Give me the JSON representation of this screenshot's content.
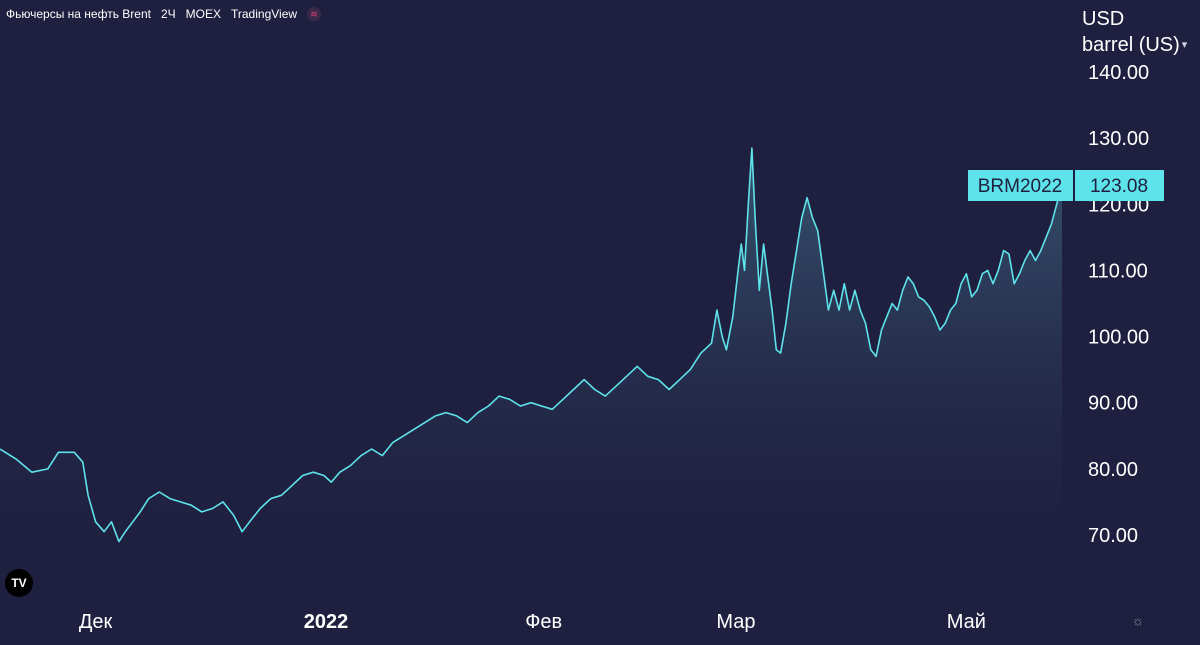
{
  "header": {
    "title": "Фьючерсы на нефть Brent",
    "interval": "2Ч",
    "exchange": "MOEX",
    "source": "TradingView"
  },
  "axis_unit": {
    "currency": "USD",
    "unit": "barrel (US)"
  },
  "colors": {
    "background": "#1f1f3f",
    "line": "#5ee3ea",
    "badge": "#5ee3ea",
    "text": "#ffffff"
  },
  "icons": {
    "tv_logo": "tradingview-logo-icon",
    "settings": "gear-icon",
    "unit_dropdown": "chevron-down-icon",
    "pulse": "pulse-icon"
  },
  "chart_data": {
    "type": "area",
    "symbol": "BRM2022",
    "last_value": "123.08",
    "y_ticks": [
      "70.00",
      "80.00",
      "90.00",
      "100.00",
      "110.00",
      "120.00",
      "130.00",
      "140.00"
    ],
    "ylim": [
      65,
      145
    ],
    "x_ticks": [
      {
        "label": "Дек",
        "t": 0.09,
        "bold": false
      },
      {
        "label": "2022",
        "t": 0.307,
        "bold": true
      },
      {
        "label": "Фев",
        "t": 0.512,
        "bold": false
      },
      {
        "label": "Мар",
        "t": 0.693,
        "bold": false
      },
      {
        "label": "Май",
        "t": 0.91,
        "bold": false
      }
    ],
    "grid": false,
    "series": [
      {
        "points": [
          [
            0.0,
            83.0
          ],
          [
            0.015,
            81.5
          ],
          [
            0.03,
            79.5
          ],
          [
            0.045,
            80.0
          ],
          [
            0.055,
            82.5
          ],
          [
            0.07,
            82.5
          ],
          [
            0.078,
            81.0
          ],
          [
            0.083,
            76.0
          ],
          [
            0.09,
            72.0
          ],
          [
            0.098,
            70.5
          ],
          [
            0.105,
            72.0
          ],
          [
            0.112,
            69.0
          ],
          [
            0.118,
            70.5
          ],
          [
            0.125,
            72.0
          ],
          [
            0.132,
            73.5
          ],
          [
            0.14,
            75.5
          ],
          [
            0.15,
            76.5
          ],
          [
            0.16,
            75.5
          ],
          [
            0.17,
            75.0
          ],
          [
            0.18,
            74.5
          ],
          [
            0.19,
            73.5
          ],
          [
            0.2,
            74.0
          ],
          [
            0.21,
            75.0
          ],
          [
            0.22,
            73.0
          ],
          [
            0.228,
            70.5
          ],
          [
            0.235,
            72.0
          ],
          [
            0.245,
            74.0
          ],
          [
            0.255,
            75.5
          ],
          [
            0.265,
            76.0
          ],
          [
            0.275,
            77.5
          ],
          [
            0.285,
            79.0
          ],
          [
            0.295,
            79.5
          ],
          [
            0.305,
            79.0
          ],
          [
            0.312,
            78.0
          ],
          [
            0.32,
            79.5
          ],
          [
            0.33,
            80.5
          ],
          [
            0.34,
            82.0
          ],
          [
            0.35,
            83.0
          ],
          [
            0.36,
            82.0
          ],
          [
            0.37,
            84.0
          ],
          [
            0.38,
            85.0
          ],
          [
            0.39,
            86.0
          ],
          [
            0.4,
            87.0
          ],
          [
            0.41,
            88.0
          ],
          [
            0.42,
            88.5
          ],
          [
            0.43,
            88.0
          ],
          [
            0.44,
            87.0
          ],
          [
            0.45,
            88.5
          ],
          [
            0.46,
            89.5
          ],
          [
            0.47,
            91.0
          ],
          [
            0.48,
            90.5
          ],
          [
            0.49,
            89.5
          ],
          [
            0.5,
            90.0
          ],
          [
            0.51,
            89.5
          ],
          [
            0.52,
            89.0
          ],
          [
            0.53,
            90.5
          ],
          [
            0.54,
            92.0
          ],
          [
            0.55,
            93.5
          ],
          [
            0.56,
            92.0
          ],
          [
            0.57,
            91.0
          ],
          [
            0.58,
            92.5
          ],
          [
            0.59,
            94.0
          ],
          [
            0.6,
            95.5
          ],
          [
            0.61,
            94.0
          ],
          [
            0.62,
            93.5
          ],
          [
            0.63,
            92.0
          ],
          [
            0.64,
            93.5
          ],
          [
            0.65,
            95.0
          ],
          [
            0.66,
            97.5
          ],
          [
            0.67,
            99.0
          ],
          [
            0.675,
            104.0
          ],
          [
            0.68,
            100.0
          ],
          [
            0.684,
            98.0
          ],
          [
            0.69,
            103.0
          ],
          [
            0.695,
            110.0
          ],
          [
            0.698,
            114.0
          ],
          [
            0.701,
            110.0
          ],
          [
            0.705,
            121.0
          ],
          [
            0.708,
            128.5
          ],
          [
            0.711,
            118.0
          ],
          [
            0.715,
            107.0
          ],
          [
            0.719,
            114.0
          ],
          [
            0.723,
            109.0
          ],
          [
            0.727,
            104.0
          ],
          [
            0.731,
            98.0
          ],
          [
            0.735,
            97.5
          ],
          [
            0.74,
            102.0
          ],
          [
            0.745,
            108.0
          ],
          [
            0.75,
            113.0
          ],
          [
            0.755,
            118.0
          ],
          [
            0.76,
            121.0
          ],
          [
            0.765,
            118.0
          ],
          [
            0.77,
            116.0
          ],
          [
            0.775,
            110.0
          ],
          [
            0.78,
            104.0
          ],
          [
            0.785,
            107.0
          ],
          [
            0.79,
            104.0
          ],
          [
            0.795,
            108.0
          ],
          [
            0.8,
            104.0
          ],
          [
            0.805,
            107.0
          ],
          [
            0.81,
            104.0
          ],
          [
            0.815,
            102.0
          ],
          [
            0.82,
            98.0
          ],
          [
            0.825,
            97.0
          ],
          [
            0.83,
            101.0
          ],
          [
            0.835,
            103.0
          ],
          [
            0.84,
            105.0
          ],
          [
            0.845,
            104.0
          ],
          [
            0.85,
            107.0
          ],
          [
            0.855,
            109.0
          ],
          [
            0.86,
            108.0
          ],
          [
            0.865,
            106.0
          ],
          [
            0.87,
            105.5
          ],
          [
            0.875,
            104.5
          ],
          [
            0.88,
            103.0
          ],
          [
            0.885,
            101.0
          ],
          [
            0.89,
            102.0
          ],
          [
            0.895,
            104.0
          ],
          [
            0.9,
            105.0
          ],
          [
            0.905,
            108.0
          ],
          [
            0.91,
            109.5
          ],
          [
            0.915,
            106.0
          ],
          [
            0.92,
            107.0
          ],
          [
            0.925,
            109.5
          ],
          [
            0.93,
            110.0
          ],
          [
            0.935,
            108.0
          ],
          [
            0.94,
            110.0
          ],
          [
            0.945,
            113.0
          ],
          [
            0.95,
            112.5
          ],
          [
            0.955,
            108.0
          ],
          [
            0.96,
            109.5
          ],
          [
            0.965,
            111.5
          ],
          [
            0.97,
            113.0
          ],
          [
            0.975,
            111.5
          ],
          [
            0.98,
            113.0
          ],
          [
            0.985,
            115.0
          ],
          [
            0.99,
            117.0
          ],
          [
            0.995,
            120.0
          ],
          [
            1.0,
            123.08
          ]
        ]
      }
    ]
  }
}
